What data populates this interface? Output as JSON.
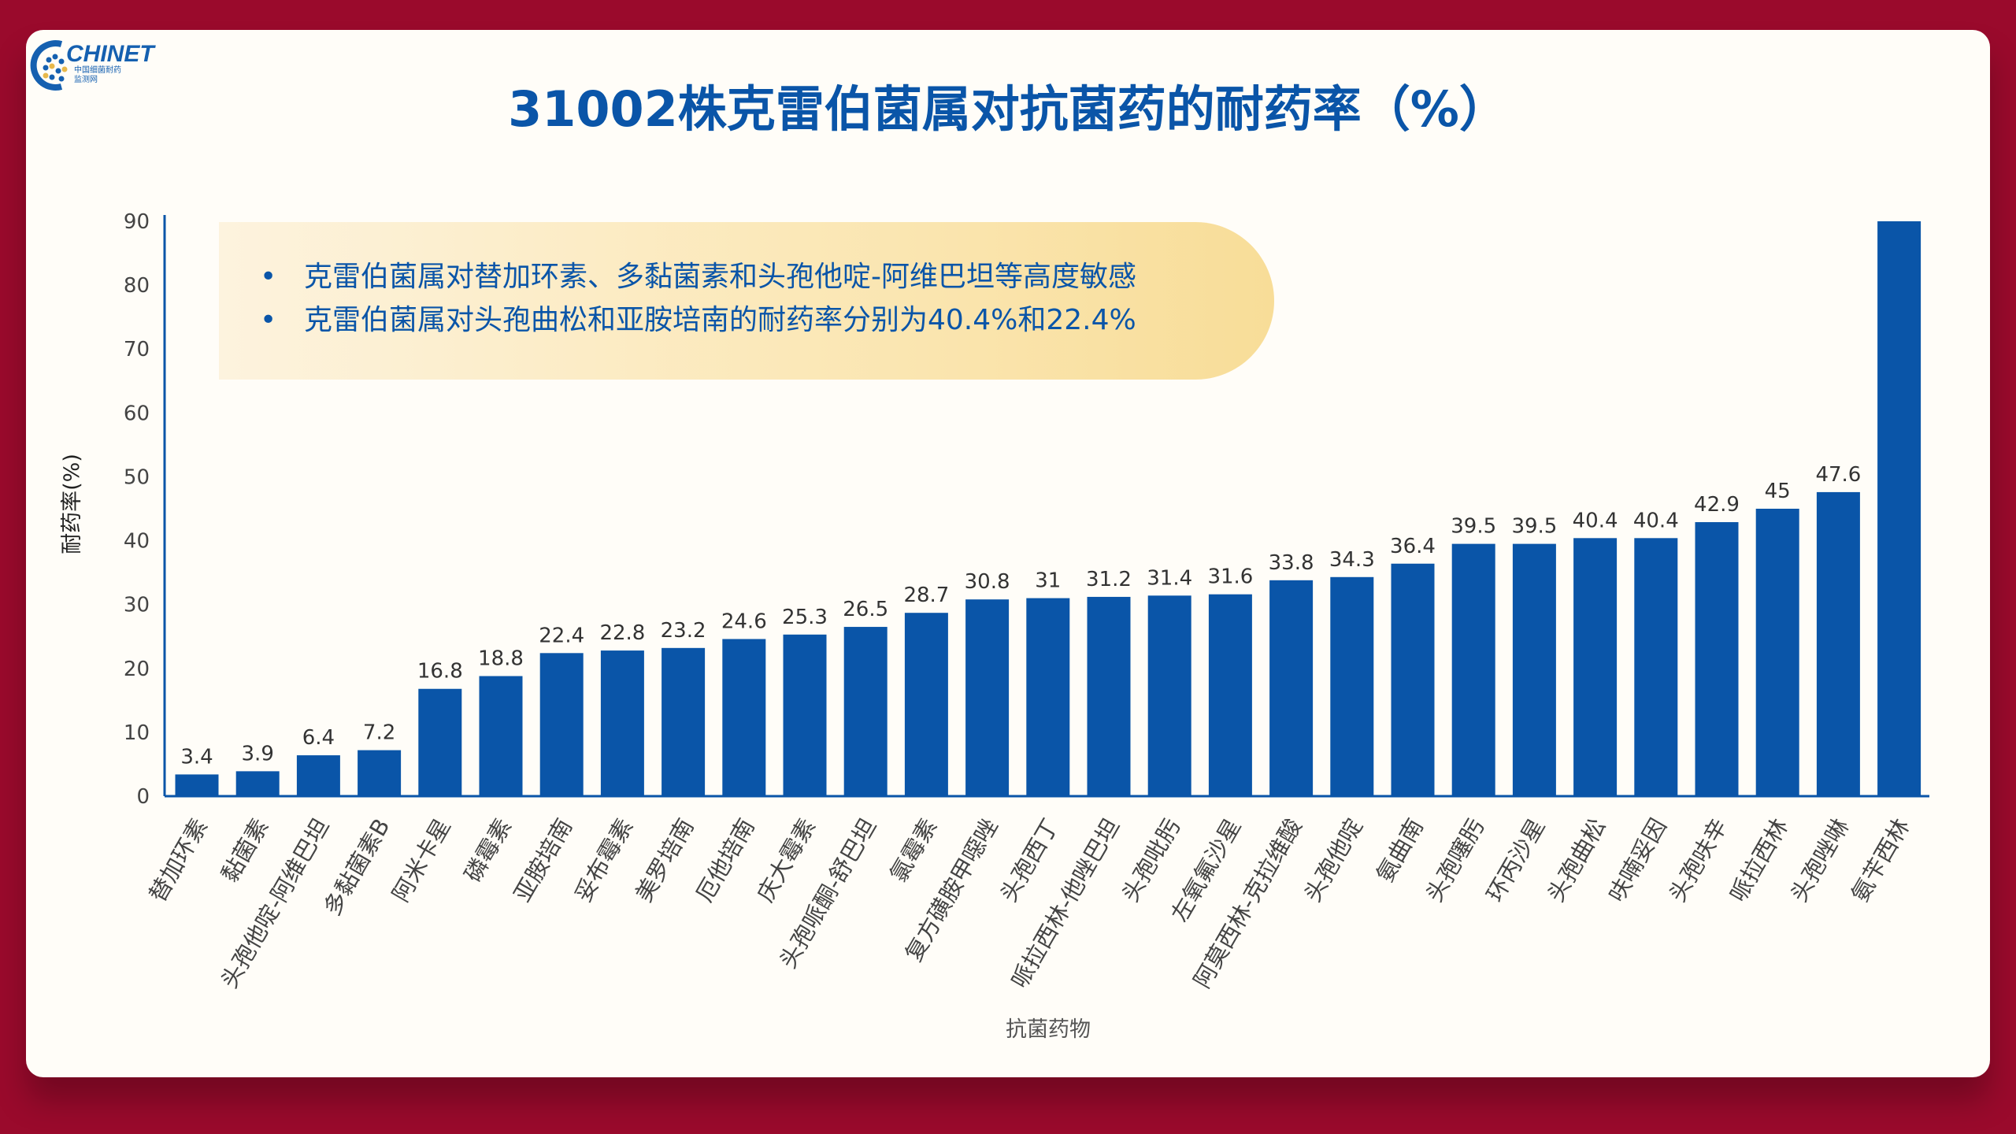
{
  "logo": {
    "text": "CHINET",
    "subtitle_line1": "中国细菌耐药",
    "subtitle_line2": "监测网"
  },
  "title": "31002株克雷伯菌属对抗菌药的耐药率（%）",
  "callout": {
    "bullets": [
      "克雷伯菌属对替加环素、多黏菌素和头孢他啶-阿维巴坦等高度敏感",
      "克雷伯菌属对头孢曲松和亚胺培南的耐药率分别为40.4%和22.4%"
    ]
  },
  "colors": {
    "bar": "#0a55a8",
    "background": "#9a0a2c",
    "title": "#0a55a8"
  },
  "chart_data": {
    "type": "bar",
    "title": "31002株克雷伯菌属对抗菌药的耐药率（%）",
    "xlabel": "抗菌药物",
    "ylabel": "耐药率(%)",
    "ylim": [
      0,
      90
    ],
    "yticks": [
      "0",
      "10",
      "20",
      "30",
      "40",
      "50",
      "60",
      "70",
      "80",
      "90"
    ],
    "categories": [
      "替加环素",
      "黏菌素",
      "头孢他啶-阿维巴坦",
      "多黏菌素B",
      "阿米卡星",
      "磷霉素",
      "亚胺培南",
      "妥布霉素",
      "美罗培南",
      "厄他培南",
      "庆大霉素",
      "头孢哌酮-舒巴坦",
      "氯霉素",
      "复方磺胺甲噁唑",
      "头孢西丁",
      "哌拉西林-他唑巴坦",
      "头孢吡肟",
      "左氧氟沙星",
      "阿莫西林-克拉维酸",
      "头孢他啶",
      "氨曲南",
      "头孢噻肟",
      "环丙沙星",
      "头孢曲松",
      "呋喃妥因",
      "头孢呋辛",
      "哌拉西林",
      "头孢唑啉",
      "氨苄西林"
    ],
    "values": [
      3.4,
      3.9,
      6.4,
      7.2,
      16.8,
      18.8,
      22.4,
      22.8,
      23.2,
      24.6,
      25.3,
      26.5,
      28.7,
      30.8,
      31,
      31.2,
      31.4,
      31.6,
      33.8,
      34.3,
      36.4,
      39.5,
      39.5,
      40.4,
      40.4,
      42.9,
      45,
      47.6,
      90
    ],
    "labels": [
      "3.4",
      "3.9",
      "6.4",
      "7.2",
      "16.8",
      "18.8",
      "22.4",
      "22.8",
      "23.2",
      "24.6",
      "25.3",
      "26.5",
      "28.7",
      "30.8",
      "31",
      "31.2",
      "31.4",
      "31.6",
      "33.8",
      "34.3",
      "36.4",
      "39.5",
      "39.5",
      "40.4",
      "40.4",
      "42.9",
      "45",
      "47.6",
      ""
    ],
    "grid": false,
    "legend": "none"
  }
}
